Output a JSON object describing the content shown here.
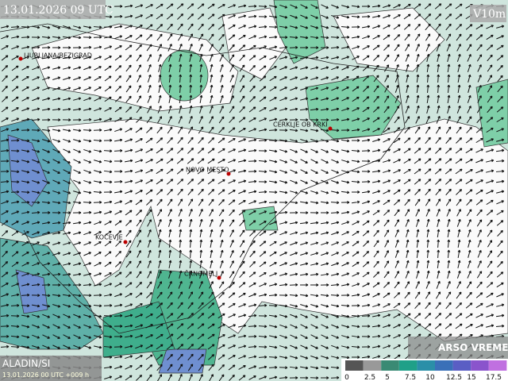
{
  "header": {
    "datetime": "13.01.2026 09 UTC",
    "field": "V10m"
  },
  "places": [
    "LJUBLJANA/BEZIGRAD",
    "CERKLJE OB KRKI",
    "NOVO MESTO",
    "KOČEVJE",
    "ČRNOMELJ"
  ],
  "footer": {
    "model": "ALADIN/SI",
    "run": "13.01.2026 00 UTC +009 h",
    "brand": "ARSO VREME"
  },
  "legend": {
    "labels": [
      0,
      2.5,
      5,
      7.5,
      10,
      12.5,
      15,
      17.5
    ]
  }
}
